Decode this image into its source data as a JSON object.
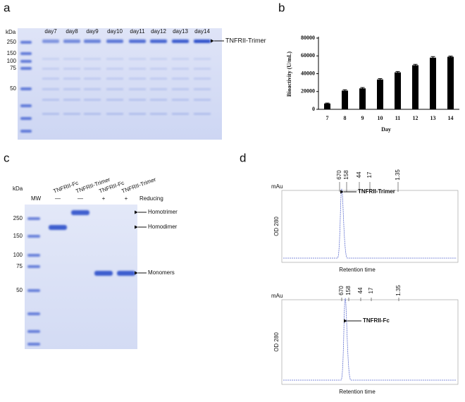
{
  "panel_a": {
    "letter": "a",
    "axis_label": "kDa",
    "markers": [
      "250",
      "150",
      "100",
      "75",
      "50"
    ],
    "lanes": [
      "day7",
      "day8",
      "day9",
      "day10",
      "day11",
      "day12",
      "day13",
      "day14"
    ],
    "band_label": "TNFRII-Trimer"
  },
  "panel_b": {
    "letter": "b",
    "chart_data": {
      "type": "bar",
      "xlabel": "Day",
      "ylabel": "Bioactivity (U/mL)",
      "categories": [
        "7",
        "8",
        "9",
        "10",
        "11",
        "12",
        "13",
        "14"
      ],
      "values": [
        6500,
        21000,
        23500,
        33500,
        41500,
        49500,
        58000,
        59000
      ],
      "errors": [
        500,
        1000,
        1000,
        1000,
        1000,
        1000,
        1200,
        800
      ],
      "color": "#000000",
      "ylim": [
        0,
        80000
      ],
      "yticks": [
        0,
        20000,
        40000,
        60000,
        80000
      ]
    }
  },
  "panel_c": {
    "letter": "c",
    "axis_label": "kDa",
    "ladder_label": "MW",
    "markers": [
      "250",
      "150",
      "100",
      "75",
      "50"
    ],
    "lanes": [
      "TNFRII-Fc",
      "TNFRII-Trimer",
      "TNFRII-Fc",
      "TNFRII-Trimer"
    ],
    "reducing_marks": [
      "—",
      "—",
      "+",
      "+"
    ],
    "reducing_label": "Reducing",
    "band_labels": [
      "Homotrimer",
      "Homodimer",
      "Monomers"
    ]
  },
  "panel_d": {
    "letter": "d",
    "chromatograms": [
      {
        "unit": "mAu",
        "ylabel": "OD 280",
        "xlabel": "Retention time",
        "standards": [
          "670",
          "158",
          "44",
          "17",
          "1.35"
        ],
        "peak_label": "TNFRII-Trimer"
      },
      {
        "unit": "mAu",
        "ylabel": "OD 280",
        "xlabel": "Retention time",
        "standards": [
          "670",
          "158",
          "44",
          "17",
          "1.35"
        ],
        "peak_label": "TNFRII-Fc"
      }
    ]
  }
}
